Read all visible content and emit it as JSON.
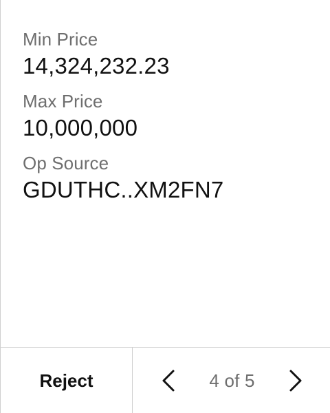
{
  "fields": [
    {
      "label": "Min Price",
      "value": "14,324,232.23"
    },
    {
      "label": "Max Price",
      "value": "10,000,000"
    },
    {
      "label": "Op Source",
      "value": "GDUTHC..XM2FN7"
    }
  ],
  "footer": {
    "reject_label": "Reject",
    "page_indicator": "4 of 5",
    "prev_icon": "chevron-left-icon",
    "next_icon": "chevron-right-icon"
  },
  "colors": {
    "label": "#6e6e6e",
    "value": "#111111",
    "divider": "#cfcfcf",
    "background": "#ffffff"
  }
}
